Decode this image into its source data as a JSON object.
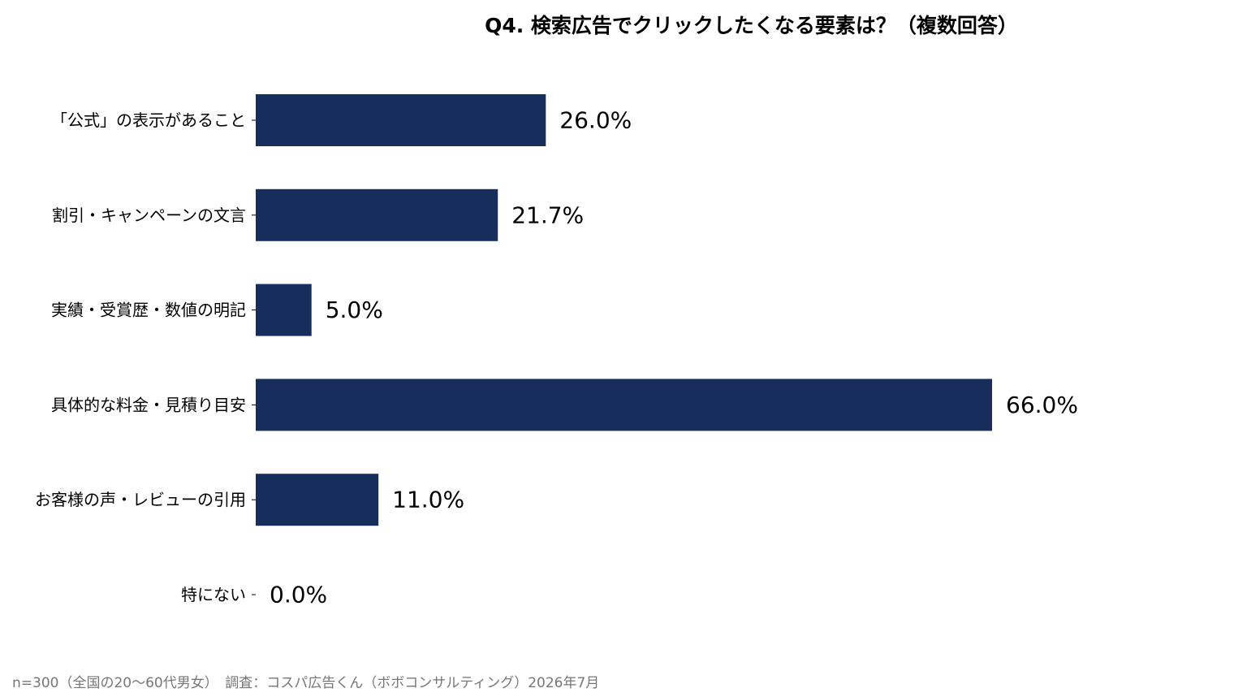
{
  "chart_data": {
    "type": "bar",
    "orientation": "horizontal",
    "title": "Q4. 検索広告でクリックしたくなる要素は？（複数回答）",
    "categories": [
      "「公式」の表示があること",
      "割引・キャンペーンの文言",
      "実績・受賞歴・数値の明記",
      "具体的な料金・見積り目安",
      "お客様の声・レビューの引用",
      "特にない"
    ],
    "values": [
      26.0,
      21.7,
      5.0,
      66.0,
      11.0,
      0.0
    ],
    "value_labels": [
      "26.0%",
      "21.7%",
      "5.0%",
      "66.0%",
      "11.0%",
      "0.0%"
    ],
    "xlim": [
      0,
      100
    ],
    "unit": "%",
    "grid": false,
    "bar_color": "#172e5c"
  },
  "footnote": "n=300（全国の20〜60代男女）　調査：コスパ広告くん（ボボコンサルティング）2026年7月"
}
